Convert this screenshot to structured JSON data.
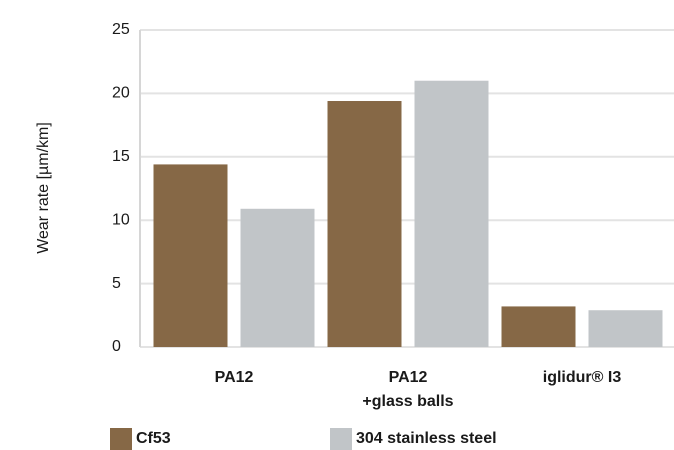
{
  "chart_data": {
    "type": "bar",
    "y_label": "Wear rate [µm/km]",
    "categories": [
      "PA12",
      "PA12\n+glass balls",
      "iglidur® I3"
    ],
    "series": [
      {
        "name": "Cf53",
        "color": "#866846",
        "values": [
          14.4,
          19.4,
          3.2
        ]
      },
      {
        "name": "304 stainless steel",
        "color": "#c1c5c8",
        "values": [
          10.9,
          21.0,
          2.9
        ]
      }
    ],
    "ylim": [
      0,
      25
    ],
    "yticks": [
      0,
      5,
      10,
      15,
      20,
      25
    ],
    "grid": true
  }
}
